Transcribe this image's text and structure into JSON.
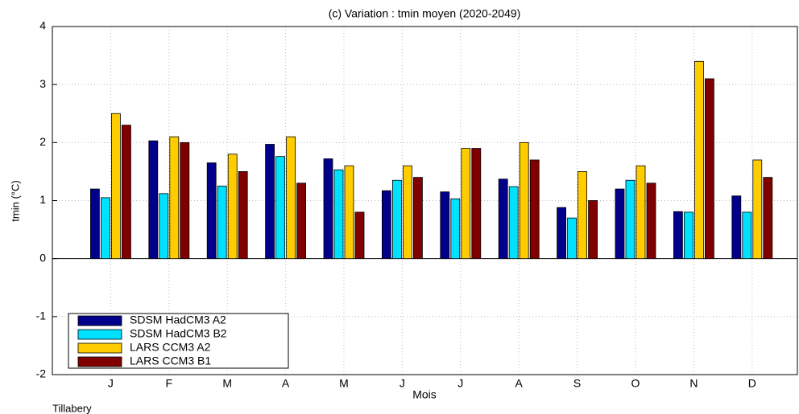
{
  "chart_data": {
    "type": "bar",
    "title": "(c) Variation : tmin moyen (2020-2049)",
    "xlabel": "Mois",
    "ylabel": "tmin (°C)",
    "footnote": "Tillabery",
    "categories": [
      "J",
      "F",
      "M",
      "A",
      "M",
      "J",
      "J",
      "A",
      "S",
      "O",
      "N",
      "D"
    ],
    "series": [
      {
        "name": "SDSM HadCM3 A2",
        "color": "#00008b",
        "values": [
          1.2,
          2.03,
          1.65,
          1.97,
          1.72,
          1.17,
          1.15,
          1.37,
          0.88,
          1.2,
          0.81,
          1.08
        ]
      },
      {
        "name": "SDSM HadCM3 B2",
        "color": "#00e0ff",
        "values": [
          1.05,
          1.12,
          1.25,
          1.76,
          1.53,
          1.35,
          1.03,
          1.24,
          0.7,
          1.35,
          0.8,
          0.8
        ]
      },
      {
        "name": "LARS CCM3 A2",
        "color": "#ffcc00",
        "values": [
          2.5,
          2.1,
          1.8,
          2.1,
          1.6,
          1.6,
          1.9,
          2.0,
          1.5,
          1.6,
          3.4,
          1.7
        ]
      },
      {
        "name": "LARS CCM3 B1",
        "color": "#800000",
        "values": [
          2.3,
          2.0,
          1.5,
          1.3,
          0.8,
          1.4,
          1.9,
          1.7,
          1.0,
          1.3,
          3.1,
          1.4
        ]
      }
    ],
    "ylim": [
      -2,
      4
    ],
    "yticks": [
      -2,
      -1,
      0,
      1,
      2,
      3,
      4
    ],
    "grid": true,
    "legend": "lower left"
  }
}
